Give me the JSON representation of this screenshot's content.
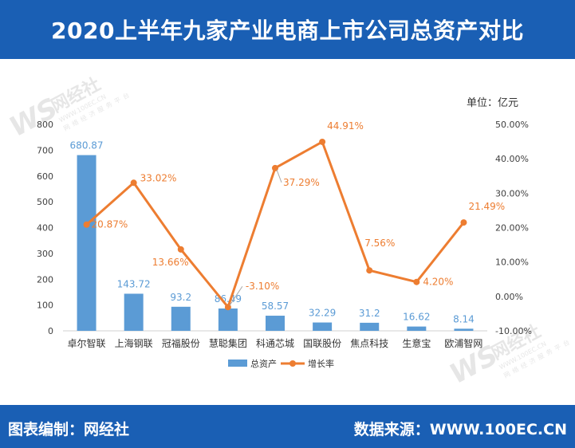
{
  "header": {
    "title": "2020上半年九家产业电商上市公司总资产对比"
  },
  "footer": {
    "left": "图表编制：网经社",
    "right": "数据来源：WWW.100EC.CN"
  },
  "watermark": {
    "brand": "网经社",
    "url": "WWW.100EC.CN",
    "slogan": "网络经济服务平台"
  },
  "colors": {
    "header_bg": "#1a5fb4",
    "bar": "#5b9bd5",
    "line": "#ed7d31"
  },
  "chart_data": {
    "type": "bar",
    "unit_label": "单位：亿元",
    "categories": [
      "卓尔智联",
      "上海钢联",
      "冠福股份",
      "慧聪集团",
      "科通芯城",
      "国联股份",
      "焦点科技",
      "生意宝",
      "欧浦智网"
    ],
    "series": [
      {
        "name": "总资产",
        "type": "bar",
        "axis": "left",
        "values": [
          680.87,
          143.72,
          93.2,
          86.49,
          58.57,
          32.29,
          31.2,
          16.62,
          8.14
        ],
        "labels": [
          "680.87",
          "143.72",
          "93.2",
          "86.49",
          "58.57",
          "32.29",
          "31.2",
          "16.62",
          "8.14"
        ]
      },
      {
        "name": "增长率",
        "type": "line",
        "axis": "right",
        "values": [
          20.87,
          33.02,
          13.66,
          -3.1,
          37.29,
          44.91,
          7.56,
          4.2,
          21.49
        ],
        "labels": [
          "20.87%",
          "33.02%",
          "13.66%",
          "-3.10%",
          "37.29%",
          "44.91%",
          "7.56%",
          "4.20%",
          "21.49%"
        ]
      }
    ],
    "y_left": {
      "min": 0,
      "max": 800,
      "ticks": [
        "0",
        "100",
        "200",
        "300",
        "400",
        "500",
        "600",
        "700",
        "800"
      ]
    },
    "y_right": {
      "min": -10,
      "max": 50,
      "ticks": [
        "-10.00%",
        "0.00%",
        "10.00%",
        "20.00%",
        "30.00%",
        "40.00%",
        "50.00%"
      ]
    },
    "grid": false,
    "legend_position": "bottom"
  }
}
